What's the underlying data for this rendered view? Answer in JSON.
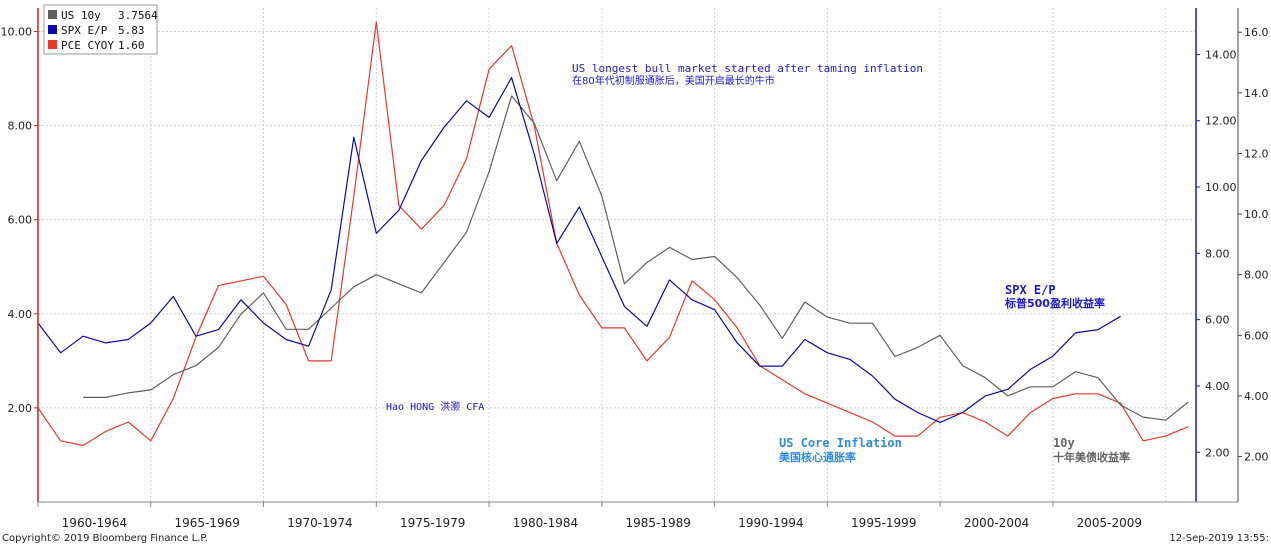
{
  "chart_data": {
    "type": "line",
    "legend": {
      "placement": "top-left",
      "entries": [
        {
          "name": "US 10y",
          "value": "3.7564",
          "color": "#606060"
        },
        {
          "name": "SPX E/P",
          "value": "5.83",
          "color": "#0a0aaa"
        },
        {
          "name": "PCE CYOY",
          "value": "1.60",
          "color": "#e8382c"
        }
      ]
    },
    "categories": [
      "1960-1964",
      "1965-1969",
      "1970-1974",
      "1975-1979",
      "1980-1984",
      "1985-1989",
      "1990-1994",
      "1995-1999",
      "2000-2004",
      "2005-2009"
    ],
    "axes": {
      "left": {
        "ticks": [
          "2.00",
          "4.00",
          "6.00",
          "8.00",
          "10.00"
        ],
        "ylim": [
          0,
          10.5
        ],
        "color": "#d42020"
      },
      "right_inner": {
        "ticks": [
          "2.00",
          "4.00",
          "6.00",
          "8.00",
          "10.00",
          "12.00",
          "14.00"
        ],
        "ylim": [
          0.5,
          15.4
        ],
        "color": "#1a1acc"
      },
      "right_outer": {
        "ticks": [
          "2.00",
          "4.00",
          "6.00",
          "8.00",
          "10.0",
          "12.0",
          "14.0",
          "16.0"
        ],
        "ylim": [
          0.5,
          16.8
        ],
        "color": "#444444"
      }
    },
    "xlim": [
      1960,
      2011.3
    ],
    "grid": true,
    "series": [
      {
        "name": "PCE CYOY",
        "color": "#e8382c",
        "axis": "left",
        "x": [
          1960,
          1961,
          1962,
          1963,
          1964,
          1965,
          1966,
          1967,
          1968,
          1969,
          1970,
          1971,
          1972,
          1973,
          1974,
          1975,
          1976,
          1977,
          1978,
          1979,
          1980,
          1981,
          1982,
          1983,
          1984,
          1985,
          1986,
          1987,
          1988,
          1989,
          1990,
          1991,
          1992,
          1993,
          1994,
          1995,
          1996,
          1997,
          1998,
          1999,
          2000,
          2001,
          2002,
          2003,
          2004,
          2005,
          2006,
          2007,
          2008,
          2009,
          2010,
          2011
        ],
        "y": [
          2.0,
          1.3,
          1.2,
          1.5,
          1.7,
          1.3,
          2.2,
          3.5,
          4.6,
          4.7,
          4.8,
          4.2,
          3.0,
          3.0,
          6.5,
          10.2,
          6.3,
          5.8,
          6.3,
          7.3,
          9.2,
          9.7,
          8.0,
          5.5,
          4.4,
          3.7,
          3.7,
          3.0,
          3.5,
          4.7,
          4.3,
          3.7,
          2.9,
          2.6,
          2.3,
          2.1,
          1.9,
          1.7,
          1.4,
          1.4,
          1.8,
          1.9,
          1.7,
          1.4,
          1.9,
          2.2,
          2.3,
          2.3,
          2.1,
          1.3,
          1.4,
          1.6
        ]
      },
      {
        "name": "US 10y",
        "color": "#606060",
        "axis": "right_outer",
        "x": [
          1962,
          1963,
          1964,
          1965,
          1966,
          1967,
          1968,
          1969,
          1970,
          1971,
          1972,
          1973,
          1974,
          1975,
          1976,
          1977,
          1978,
          1979,
          1980,
          1981,
          1982,
          1983,
          1984,
          1985,
          1986,
          1987,
          1988,
          1989,
          1990,
          1991,
          1992,
          1993,
          1994,
          1995,
          1996,
          1997,
          1998,
          1999,
          2000,
          2001,
          2002,
          2003,
          2004,
          2005,
          2006,
          2007,
          2008,
          2009,
          2010,
          2011
        ],
        "y": [
          3.95,
          3.95,
          4.1,
          4.2,
          4.7,
          5.0,
          5.6,
          6.7,
          7.4,
          6.2,
          6.2,
          6.9,
          7.6,
          8.0,
          7.7,
          7.4,
          8.4,
          9.4,
          11.4,
          13.9,
          13.0,
          11.1,
          12.4,
          10.6,
          7.7,
          8.4,
          8.9,
          8.5,
          8.6,
          7.9,
          7.0,
          5.9,
          7.1,
          6.6,
          6.4,
          6.4,
          5.3,
          5.6,
          6.0,
          5.0,
          4.6,
          4.0,
          4.3,
          4.3,
          4.8,
          4.6,
          3.7,
          3.3,
          3.2,
          3.8
        ]
      },
      {
        "name": "SPX E/P",
        "color": "#0a0aaa",
        "axis": "right_inner",
        "x": [
          1960,
          1961,
          1962,
          1963,
          1964,
          1965,
          1966,
          1967,
          1968,
          1969,
          1970,
          1971,
          1972,
          1973,
          1974,
          1975,
          1976,
          1977,
          1978,
          1979,
          1980,
          1981,
          1982,
          1983,
          1984,
          1985,
          1986,
          1987,
          1988,
          1989,
          1990,
          1991,
          1992,
          1993,
          1994,
          1995,
          1996,
          1997,
          1998,
          1999,
          2000,
          2001,
          2002,
          2003,
          2004,
          2005,
          2006,
          2007,
          2008
        ],
        "y": [
          5.9,
          5.0,
          5.5,
          5.3,
          5.4,
          5.9,
          6.7,
          5.5,
          5.7,
          6.6,
          5.9,
          5.4,
          5.2,
          6.9,
          11.5,
          8.6,
          9.3,
          10.8,
          11.8,
          12.6,
          12.1,
          13.3,
          11.0,
          8.3,
          9.4,
          7.9,
          6.4,
          5.8,
          7.2,
          6.6,
          6.3,
          5.3,
          4.6,
          4.6,
          5.4,
          5.0,
          4.8,
          4.3,
          3.6,
          3.2,
          2.9,
          3.2,
          3.7,
          3.9,
          4.5,
          4.9,
          5.6,
          5.7,
          6.1
        ]
      }
    ],
    "annotations": {
      "bull_en": "US longest bull market started after taming inflation",
      "bull_cn": "在80年代初制服通胀后，美国开启最长的牛市",
      "author": "Hao HONG 洪灏 CFA",
      "spx_en": "SPX E/P",
      "spx_cn": "标普500盈利收益率",
      "core_en": "US Core Inflation",
      "core_cn": "美国核心通胀率",
      "tenyear_en": "10y",
      "tenyear_cn": "十年美债收益率"
    },
    "footer": {
      "copyright": "Copyright© 2019 Bloomberg Finance L.P.",
      "timestamp": "12-Sep-2019 13:55:"
    }
  }
}
